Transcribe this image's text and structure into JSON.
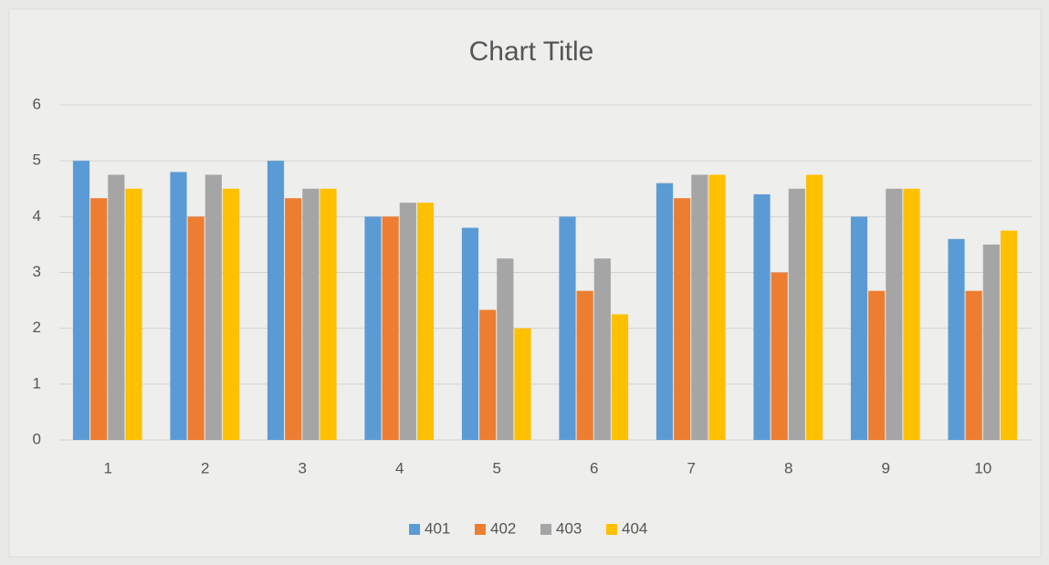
{
  "chart_data": {
    "type": "bar",
    "title": "Chart Title",
    "categories": [
      "1",
      "2",
      "3",
      "4",
      "5",
      "6",
      "7",
      "8",
      "9",
      "10"
    ],
    "series": [
      {
        "name": "401",
        "color": "#5b9bd5",
        "values": [
          5.0,
          4.8,
          5.0,
          4.0,
          3.8,
          4.0,
          4.6,
          4.4,
          4.0,
          3.6
        ]
      },
      {
        "name": "402",
        "color": "#ed7d31",
        "values": [
          4.33,
          4.0,
          4.33,
          4.0,
          2.33,
          2.67,
          4.33,
          3.0,
          2.67,
          2.67
        ]
      },
      {
        "name": "403",
        "color": "#a5a5a5",
        "values": [
          4.75,
          4.75,
          4.5,
          4.25,
          3.25,
          3.25,
          4.75,
          4.5,
          4.5,
          3.5
        ]
      },
      {
        "name": "404",
        "color": "#ffc000",
        "values": [
          4.5,
          4.5,
          4.5,
          4.25,
          2.0,
          2.25,
          4.75,
          4.75,
          4.5,
          3.75
        ]
      }
    ],
    "ylim": [
      0,
      6
    ],
    "yticks": [
      0,
      1,
      2,
      3,
      4,
      5,
      6
    ],
    "grid": true,
    "legend": "bottom"
  }
}
